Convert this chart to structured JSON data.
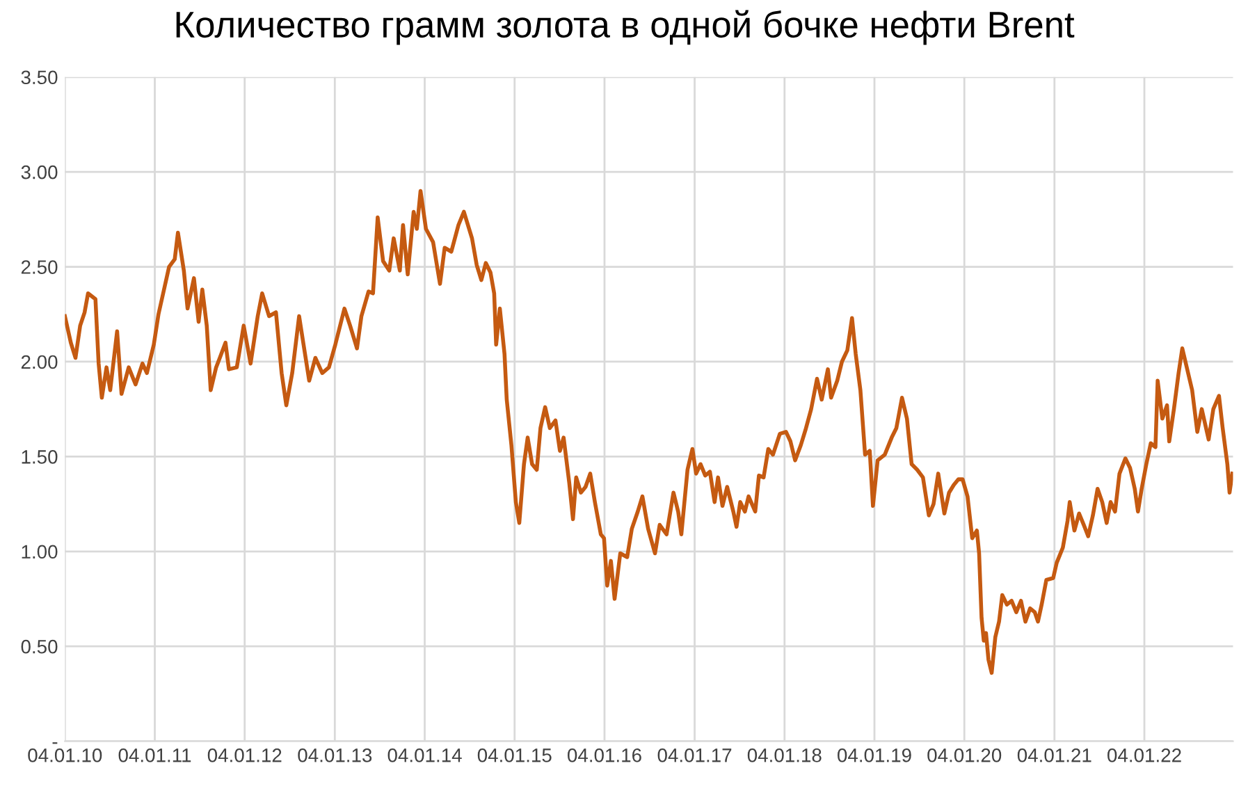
{
  "chart_data": {
    "type": "line",
    "title": "Количество грамм золота в одной бочке нефти Brent",
    "x": [
      "2010-01-04",
      "2010-01-28",
      "2010-02-16",
      "2010-03-07",
      "2010-03-25",
      "2010-04-08",
      "2010-05-08",
      "2010-05-21",
      "2010-06-03",
      "2010-06-22",
      "2010-07-07",
      "2010-08-04",
      "2010-08-22",
      "2010-09-20",
      "2010-10-18",
      "2010-11-15",
      "2010-12-03",
      "2010-12-31",
      "2011-01-19",
      "2011-02-07",
      "2011-03-03",
      "2011-03-26",
      "2011-04-08",
      "2011-05-02",
      "2011-05-17",
      "2011-06-12",
      "2011-07-01",
      "2011-07-16",
      "2011-08-03",
      "2011-08-19",
      "2011-09-10",
      "2011-09-25",
      "2011-10-18",
      "2011-11-01",
      "2011-12-03",
      "2011-12-31",
      "2012-01-28",
      "2012-02-26",
      "2012-03-15",
      "2012-04-12",
      "2012-05-10",
      "2012-06-02",
      "2012-06-21",
      "2012-07-15",
      "2012-08-12",
      "2012-08-30",
      "2012-09-22",
      "2012-10-17",
      "2012-11-14",
      "2012-12-11",
      "2013-01-06",
      "2013-02-12",
      "2013-03-07",
      "2013-04-04",
      "2013-04-22",
      "2013-05-21",
      "2013-06-08",
      "2013-06-27",
      "2013-07-19",
      "2013-08-13",
      "2013-08-31",
      "2013-09-25",
      "2013-10-08",
      "2013-10-27",
      "2013-11-20",
      "2013-12-03",
      "2013-12-18",
      "2014-01-09",
      "2014-02-07",
      "2014-03-07",
      "2014-03-26",
      "2014-04-22",
      "2014-05-21",
      "2014-06-12",
      "2014-07-15",
      "2014-08-03",
      "2014-08-22",
      "2014-09-09",
      "2014-09-28",
      "2014-10-13",
      "2014-10-21",
      "2014-11-05",
      "2014-11-24",
      "2014-12-03",
      "2014-12-22",
      "2015-01-09",
      "2015-01-23",
      "2015-02-11",
      "2015-02-26",
      "2015-03-16",
      "2015-04-04",
      "2015-04-19",
      "2015-05-08",
      "2015-05-27",
      "2015-06-19",
      "2015-07-07",
      "2015-07-22",
      "2015-08-14",
      "2015-08-29",
      "2015-09-11",
      "2015-09-30",
      "2015-10-19",
      "2015-11-07",
      "2015-11-26",
      "2015-12-20",
      "2016-01-02",
      "2016-01-15",
      "2016-01-30",
      "2016-02-14",
      "2016-03-08",
      "2016-04-05",
      "2016-04-24",
      "2016-05-18",
      "2016-06-06",
      "2016-06-29",
      "2016-07-27",
      "2016-08-15",
      "2016-09-12",
      "2016-10-10",
      "2016-10-29",
      "2016-11-11",
      "2016-12-06",
      "2016-12-26",
      "2017-01-10",
      "2017-01-28",
      "2017-02-16",
      "2017-03-07",
      "2017-03-26",
      "2017-04-09",
      "2017-04-27",
      "2017-05-16",
      "2017-06-10",
      "2017-06-23",
      "2017-07-08",
      "2017-07-27",
      "2017-08-11",
      "2017-09-07",
      "2017-09-22",
      "2017-10-11",
      "2017-10-30",
      "2017-11-18",
      "2017-12-16",
      "2018-01-10",
      "2018-01-28",
      "2018-02-16",
      "2018-03-11",
      "2018-03-30",
      "2018-04-22",
      "2018-05-16",
      "2018-06-04",
      "2018-06-29",
      "2018-07-12",
      "2018-08-06",
      "2018-08-25",
      "2018-09-16",
      "2018-10-05",
      "2018-10-20",
      "2018-11-08",
      "2018-11-27",
      "2018-12-16",
      "2018-12-29",
      "2019-01-17",
      "2019-02-15",
      "2019-03-15",
      "2019-04-03",
      "2019-04-26",
      "2019-05-16",
      "2019-06-04",
      "2019-06-27",
      "2019-07-20",
      "2019-08-13",
      "2019-09-01",
      "2019-09-20",
      "2019-10-15",
      "2019-11-03",
      "2019-11-22",
      "2019-12-11",
      "2019-12-28",
      "2020-01-17",
      "2020-02-05",
      "2020-02-24",
      "2020-03-04",
      "2020-03-14",
      "2020-03-23",
      "2020-04-01",
      "2020-04-11",
      "2020-04-24",
      "2020-05-09",
      "2020-05-24",
      "2020-06-06",
      "2020-06-25",
      "2020-07-14",
      "2020-08-02",
      "2020-08-21",
      "2020-09-08",
      "2020-09-27",
      "2020-10-16",
      "2020-10-29",
      "2020-11-13",
      "2020-12-02",
      "2020-12-30",
      "2021-01-13",
      "2021-02-07",
      "2021-02-26",
      "2021-03-07",
      "2021-03-26",
      "2021-04-14",
      "2021-05-03",
      "2021-05-21",
      "2021-06-09",
      "2021-06-28",
      "2021-07-17",
      "2021-08-04",
      "2021-08-20",
      "2021-09-07",
      "2021-09-25",
      "2021-10-19",
      "2021-11-07",
      "2021-11-26",
      "2021-12-09",
      "2021-12-24",
      "2022-01-12",
      "2022-01-30",
      "2022-02-18",
      "2022-02-27",
      "2022-03-18",
      "2022-04-06",
      "2022-04-15",
      "2022-05-04",
      "2022-05-23",
      "2022-06-07",
      "2022-07-17",
      "2022-08-07",
      "2022-08-25",
      "2022-09-22",
      "2022-10-11",
      "2022-11-03",
      "2022-11-18",
      "2022-12-07",
      "2022-12-16",
      "2022-12-27"
    ],
    "series": [
      {
        "color": "#c55a11",
        "values": [
          2.24,
          2.1,
          2.02,
          2.19,
          2.26,
          2.36,
          2.33,
          1.99,
          1.81,
          1.97,
          1.85,
          2.16,
          1.83,
          1.97,
          1.88,
          1.99,
          1.94,
          2.09,
          2.25,
          2.36,
          2.5,
          2.54,
          2.68,
          2.48,
          2.28,
          2.44,
          2.21,
          2.38,
          2.19,
          1.85,
          1.97,
          2.02,
          2.1,
          1.96,
          1.97,
          2.19,
          1.99,
          2.24,
          2.36,
          2.24,
          2.26,
          1.94,
          1.77,
          1.94,
          2.24,
          2.09,
          1.9,
          2.02,
          1.94,
          1.97,
          2.09,
          2.28,
          2.19,
          2.07,
          2.24,
          2.37,
          2.36,
          2.76,
          2.53,
          2.48,
          2.65,
          2.48,
          2.72,
          2.46,
          2.79,
          2.7,
          2.9,
          2.7,
          2.63,
          2.41,
          2.6,
          2.58,
          2.72,
          2.79,
          2.65,
          2.51,
          2.43,
          2.52,
          2.47,
          2.36,
          2.09,
          2.28,
          2.04,
          1.8,
          1.56,
          1.26,
          1.15,
          1.46,
          1.6,
          1.46,
          1.43,
          1.65,
          1.76,
          1.65,
          1.69,
          1.53,
          1.6,
          1.36,
          1.17,
          1.39,
          1.31,
          1.34,
          1.41,
          1.26,
          1.09,
          1.07,
          0.82,
          0.95,
          0.75,
          0.99,
          0.97,
          1.12,
          1.21,
          1.29,
          1.12,
          0.99,
          1.14,
          1.09,
          1.31,
          1.21,
          1.09,
          1.43,
          1.54,
          1.41,
          1.46,
          1.4,
          1.42,
          1.26,
          1.39,
          1.24,
          1.34,
          1.21,
          1.13,
          1.26,
          1.21,
          1.29,
          1.21,
          1.4,
          1.39,
          1.54,
          1.51,
          1.62,
          1.63,
          1.58,
          1.48,
          1.56,
          1.64,
          1.75,
          1.91,
          1.8,
          1.96,
          1.81,
          1.9,
          2.0,
          2.06,
          2.23,
          2.04,
          1.85,
          1.51,
          1.53,
          1.24,
          1.48,
          1.51,
          1.6,
          1.65,
          1.81,
          1.7,
          1.46,
          1.43,
          1.39,
          1.19,
          1.25,
          1.41,
          1.2,
          1.31,
          1.35,
          1.38,
          1.38,
          1.29,
          1.07,
          1.11,
          0.99,
          0.65,
          0.53,
          0.57,
          0.43,
          0.36,
          0.55,
          0.63,
          0.77,
          0.72,
          0.74,
          0.68,
          0.74,
          0.63,
          0.7,
          0.68,
          0.63,
          0.72,
          0.85,
          0.86,
          0.94,
          1.02,
          1.16,
          1.26,
          1.11,
          1.2,
          1.14,
          1.08,
          1.19,
          1.33,
          1.26,
          1.15,
          1.26,
          1.21,
          1.41,
          1.49,
          1.44,
          1.33,
          1.21,
          1.33,
          1.46,
          1.57,
          1.55,
          1.9,
          1.7,
          1.77,
          1.58,
          1.75,
          1.94,
          2.07,
          1.85,
          1.63,
          1.75,
          1.59,
          1.75,
          1.82,
          1.65,
          1.46,
          1.31,
          1.41
        ]
      }
    ],
    "xlim": [
      "2010-01-04",
      "2022-12-30"
    ],
    "xticks": [
      {
        "value": "2010-01-04",
        "label": "04.01.10"
      },
      {
        "value": "2011-01-04",
        "label": "04.01.11"
      },
      {
        "value": "2012-01-04",
        "label": "04.01.12"
      },
      {
        "value": "2013-01-04",
        "label": "04.01.13"
      },
      {
        "value": "2014-01-04",
        "label": "04.01.14"
      },
      {
        "value": "2015-01-04",
        "label": "04.01.15"
      },
      {
        "value": "2016-01-04",
        "label": "04.01.16"
      },
      {
        "value": "2017-01-04",
        "label": "04.01.17"
      },
      {
        "value": "2018-01-04",
        "label": "04.01.18"
      },
      {
        "value": "2019-01-04",
        "label": "04.01.19"
      },
      {
        "value": "2020-01-04",
        "label": "04.01.20"
      },
      {
        "value": "2021-01-04",
        "label": "04.01.21"
      },
      {
        "value": "2022-01-04",
        "label": "04.01.22"
      }
    ],
    "ylim": [
      0,
      3.5
    ],
    "yticks": [
      {
        "value": 0,
        "label": "-"
      },
      {
        "value": 0.5,
        "label": "0.50"
      },
      {
        "value": 1,
        "label": "1.00"
      },
      {
        "value": 1.5,
        "label": "1.50"
      },
      {
        "value": 2,
        "label": "2.00"
      },
      {
        "value": 2.5,
        "label": "2.50"
      },
      {
        "value": 3,
        "label": "3.00"
      },
      {
        "value": 3.5,
        "label": "3.50"
      }
    ],
    "grid": true,
    "marker": "none",
    "line_style": "solid"
  }
}
